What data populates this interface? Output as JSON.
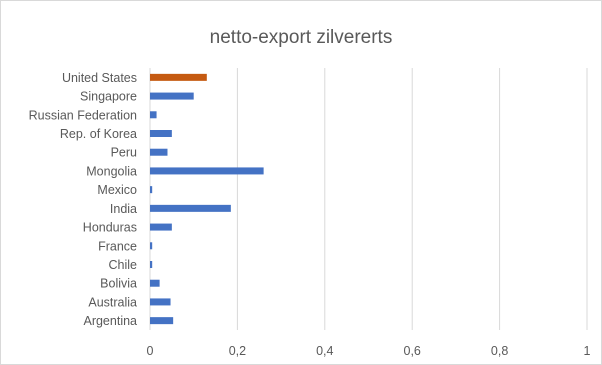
{
  "chart_data": {
    "type": "bar",
    "orientation": "horizontal",
    "title": "netto-export zilvererts",
    "xlabel": "",
    "ylabel": "",
    "xlim": [
      0,
      1
    ],
    "x_ticks": [
      "0",
      "0,2",
      "0,4",
      "0,6",
      "0,8",
      "1"
    ],
    "grid": "vertical",
    "legend": "none",
    "categories": [
      "United States",
      "Singapore",
      "Russian Federation",
      "Rep. of Korea",
      "Peru",
      "Mongolia",
      "Mexico",
      "India",
      "Honduras",
      "France",
      "Chile",
      "Bolivia",
      "Australia",
      "Argentina"
    ],
    "values": [
      0.13,
      0.1,
      0.015,
      0.05,
      0.04,
      0.26,
      0.005,
      0.185,
      0.05,
      0.005,
      0.005,
      0.022,
      0.047,
      0.053
    ],
    "colors": {
      "default": "#4472c4",
      "highlight": "#c55a11"
    },
    "highlight_category": "United States"
  }
}
